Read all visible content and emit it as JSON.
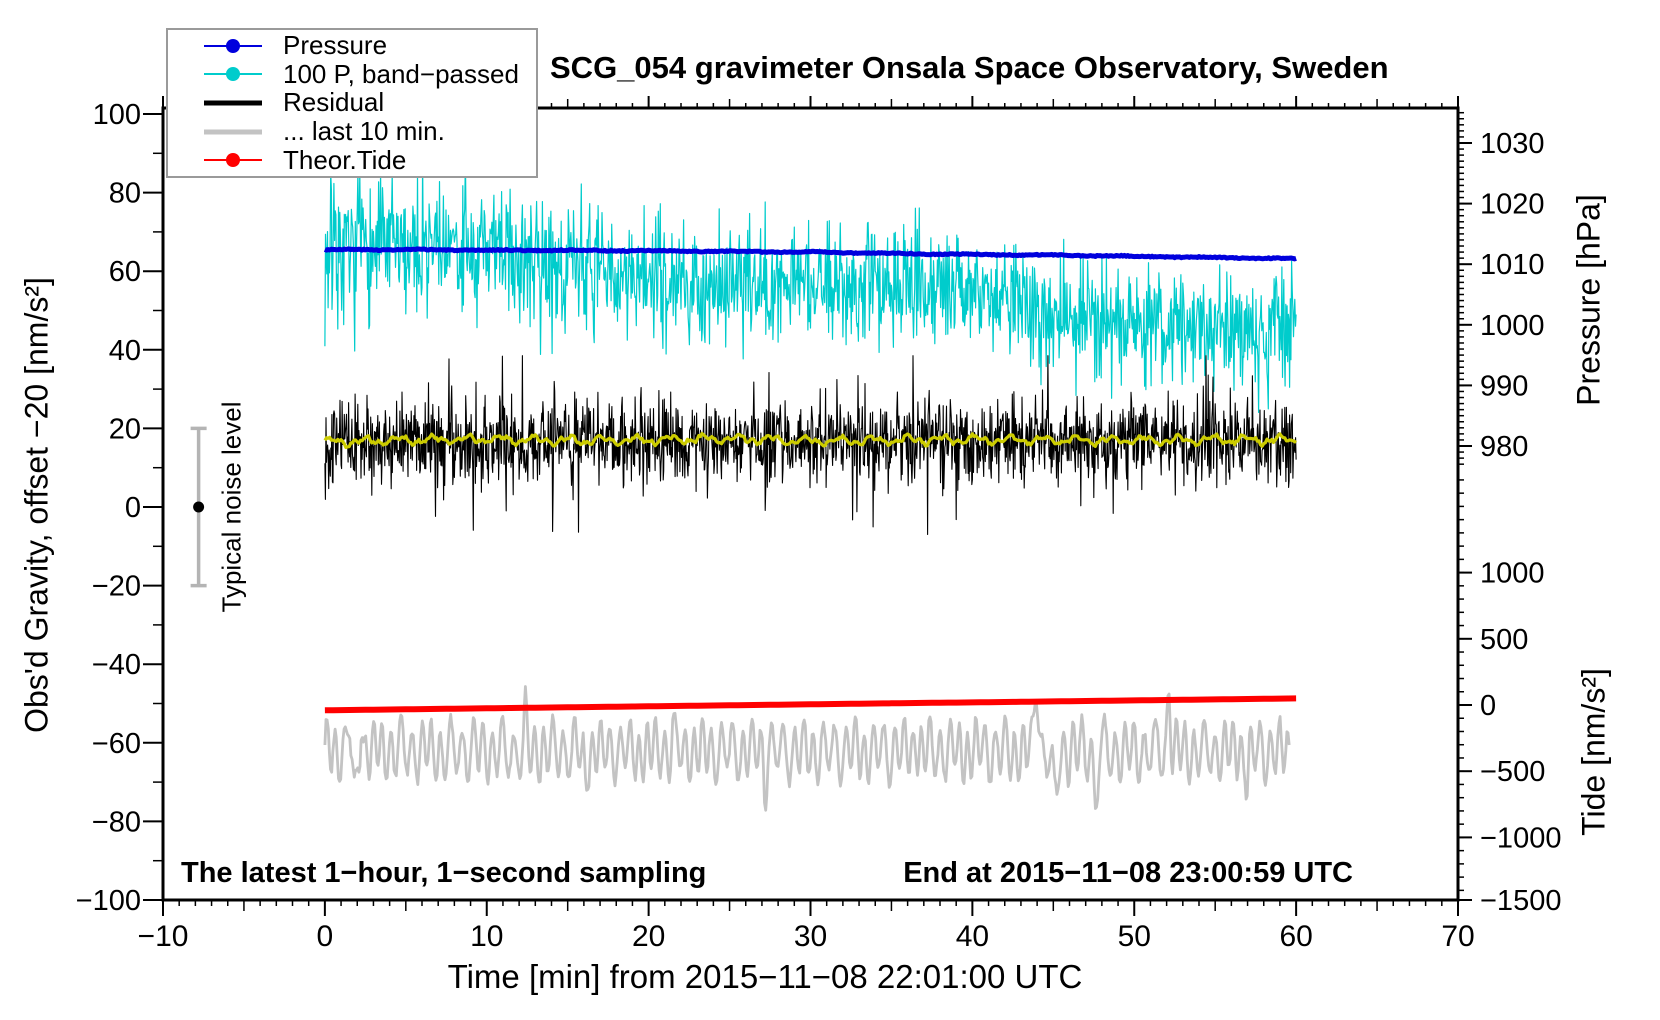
{
  "chart_data": {
    "type": "line",
    "title": "SCG_054 gravimeter Onsala Space Observatory, Sweden",
    "xlabel": "Time [min] from 2015−11−08 22:01:00 UTC",
    "ylabel_left": "Obs'd Gravity, offset −20 [nm/s²]",
    "ylabel_right_top": "Pressure [hPa]",
    "ylabel_right_bottom": "Tide [nm/s²]",
    "annotations": {
      "bottom_left": "The latest 1−hour, 1−second sampling",
      "bottom_right": "End at 2015−11−08 23:00:59 UTC",
      "noise_label": "Typical noise level"
    },
    "axes": {
      "x": {
        "range": [
          -10,
          70
        ],
        "tick_values": [
          -10,
          0,
          10,
          20,
          30,
          40,
          50,
          60,
          70
        ],
        "tick_labels": [
          "−10",
          "0",
          "10",
          "20",
          "30",
          "40",
          "50",
          "60",
          "70"
        ],
        "minor_step": 1,
        "medium_step": 5
      },
      "gravity": {
        "range": [
          -100,
          101.5
        ],
        "tick_values": [
          -100,
          -80,
          -60,
          -40,
          -20,
          0,
          20,
          40,
          60,
          80,
          100
        ],
        "tick_labels": [
          "−100",
          "−80",
          "−60",
          "−40",
          "−20",
          "0",
          "20",
          "40",
          "60",
          "80",
          "100"
        ],
        "minor_step": 10
      },
      "pressure": {
        "tick_values": [
          1030,
          1020,
          1010,
          1000,
          990,
          980
        ],
        "tick_labels": [
          "1030",
          "1020",
          "1010",
          "1000",
          "990",
          "980"
        ],
        "minor_step": 1
      },
      "tide": {
        "tick_values": [
          1000,
          500,
          0,
          -500,
          -1000,
          -1500
        ],
        "tick_labels": [
          "1000",
          "500",
          "0",
          "−500",
          "−1000",
          "−1500"
        ],
        "minor_step": 100
      }
    },
    "legend": {
      "position": "top-left",
      "items": [
        {
          "label": "Pressure",
          "color": "#0000dd",
          "marker": "dot",
          "line_width": 2
        },
        {
          "label": "100 P, band−passed",
          "color": "#00cccc",
          "marker": "dot",
          "line_width": 2
        },
        {
          "label": "Residual",
          "color": "#000000",
          "marker": "none",
          "line_width": 5
        },
        {
          "label": "... last 10 min.",
          "color": "#c3c3c3",
          "marker": "none",
          "line_width": 5
        },
        {
          "label": "Theor.Tide",
          "color": "#ff0000",
          "marker": "dot",
          "line_width": 2
        }
      ]
    },
    "noise_marker": {
      "x_min": -7.8,
      "center": 0,
      "half_range": 20
    },
    "series": [
      {
        "name": "Pressure",
        "axis": "pressure",
        "unit": "hPa",
        "color": "#0000dd",
        "x": [
          0,
          5,
          10,
          15,
          20,
          25,
          30,
          35,
          40,
          45,
          50,
          55,
          60
        ],
        "values": [
          1012.4,
          1012.4,
          1012.3,
          1012.3,
          1012.2,
          1012.1,
          1012.0,
          1011.8,
          1011.6,
          1011.5,
          1011.3,
          1011.1,
          1010.9
        ]
      },
      {
        "name": "100 P, band−passed",
        "axis": "gravity",
        "color": "#00cccc",
        "x": [
          0,
          5,
          10,
          15,
          20,
          25,
          30,
          35,
          40,
          45,
          50,
          55,
          60
        ],
        "center": [
          65,
          64,
          62.5,
          61,
          59.5,
          58,
          56.5,
          55,
          53,
          51,
          48.5,
          46.5,
          44.5
        ],
        "half_amplitude": [
          22,
          21,
          20,
          19,
          18,
          17,
          16.5,
          16,
          16.5,
          17,
          17.5,
          18,
          18
        ]
      },
      {
        "name": "Residual",
        "axis": "gravity",
        "color": "#000000",
        "x": [
          0,
          60
        ],
        "center": 16.5,
        "typical_half_amplitude": 11,
        "extremes": [
          -6,
          38
        ]
      },
      {
        "name": "Residual smoothed",
        "axis": "gravity",
        "color": "#cccc00",
        "x": [
          0,
          5,
          10,
          15,
          20,
          25,
          30,
          35,
          40,
          45,
          50,
          55,
          60
        ],
        "values": [
          16.5,
          17.0,
          17.3,
          16.9,
          17.1,
          17.4,
          16.8,
          17.0,
          17.2,
          17.0,
          16.9,
          17.2,
          17.0
        ]
      },
      {
        "name": "... last 10 min.",
        "axis": "gravity",
        "color": "#c3c3c3",
        "x": [
          0,
          60
        ],
        "center": -62,
        "typical_half_amplitude": 8,
        "extremes": [
          -78,
          -34
        ]
      },
      {
        "name": "Theor.Tide",
        "axis": "tide",
        "unit": "nm/s²",
        "color": "#ff0000",
        "x": [
          0,
          10,
          20,
          30,
          40,
          50,
          60
        ],
        "values": [
          -40,
          -25,
          -10,
          5,
          20,
          35,
          50
        ]
      }
    ]
  }
}
